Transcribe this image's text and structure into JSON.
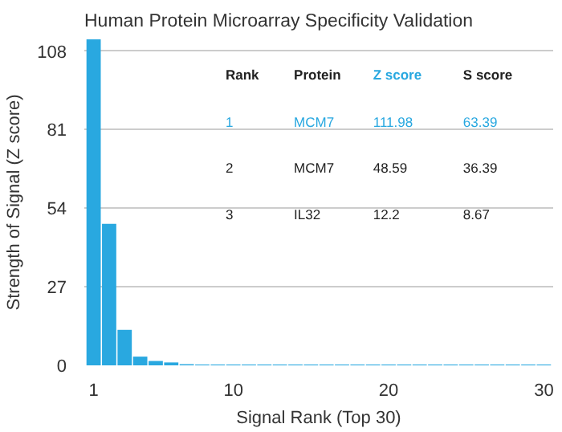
{
  "chart_data": {
    "type": "bar",
    "title": "Human Protein Microarray Specificity Validation",
    "xlabel": "Signal Rank (Top 30)",
    "ylabel": "Strength of Signal (Z score)",
    "x": [
      1,
      2,
      3,
      4,
      5,
      6,
      7,
      8,
      9,
      10,
      11,
      12,
      13,
      14,
      15,
      16,
      17,
      18,
      19,
      20,
      21,
      22,
      23,
      24,
      25,
      26,
      27,
      28,
      29,
      30
    ],
    "values": [
      111.98,
      48.59,
      12.2,
      3,
      1.5,
      1,
      0.4,
      0.3,
      0.3,
      0.3,
      0.3,
      0.3,
      0.3,
      0.3,
      0.3,
      0.3,
      0.3,
      0.3,
      0.3,
      0.3,
      0.3,
      0.3,
      0.3,
      0.3,
      0.3,
      0.3,
      0.3,
      0.3,
      0.3,
      0.3
    ],
    "color": "#29a8e0",
    "xlim": [
      0.4,
      30.6
    ],
    "ylim": [
      0,
      112
    ],
    "xticks": [
      1,
      10,
      20,
      30
    ],
    "yticks": [
      0,
      27,
      54,
      81,
      108
    ],
    "grid": "y",
    "annotations": [
      "Rank",
      "Protein",
      "Z score",
      "S score",
      "1",
      "MCM7",
      "111.98",
      "63.39",
      "2",
      "MCM7",
      "48.59",
      "36.39",
      "3",
      "IL32",
      "12.2",
      "8.67"
    ]
  }
}
